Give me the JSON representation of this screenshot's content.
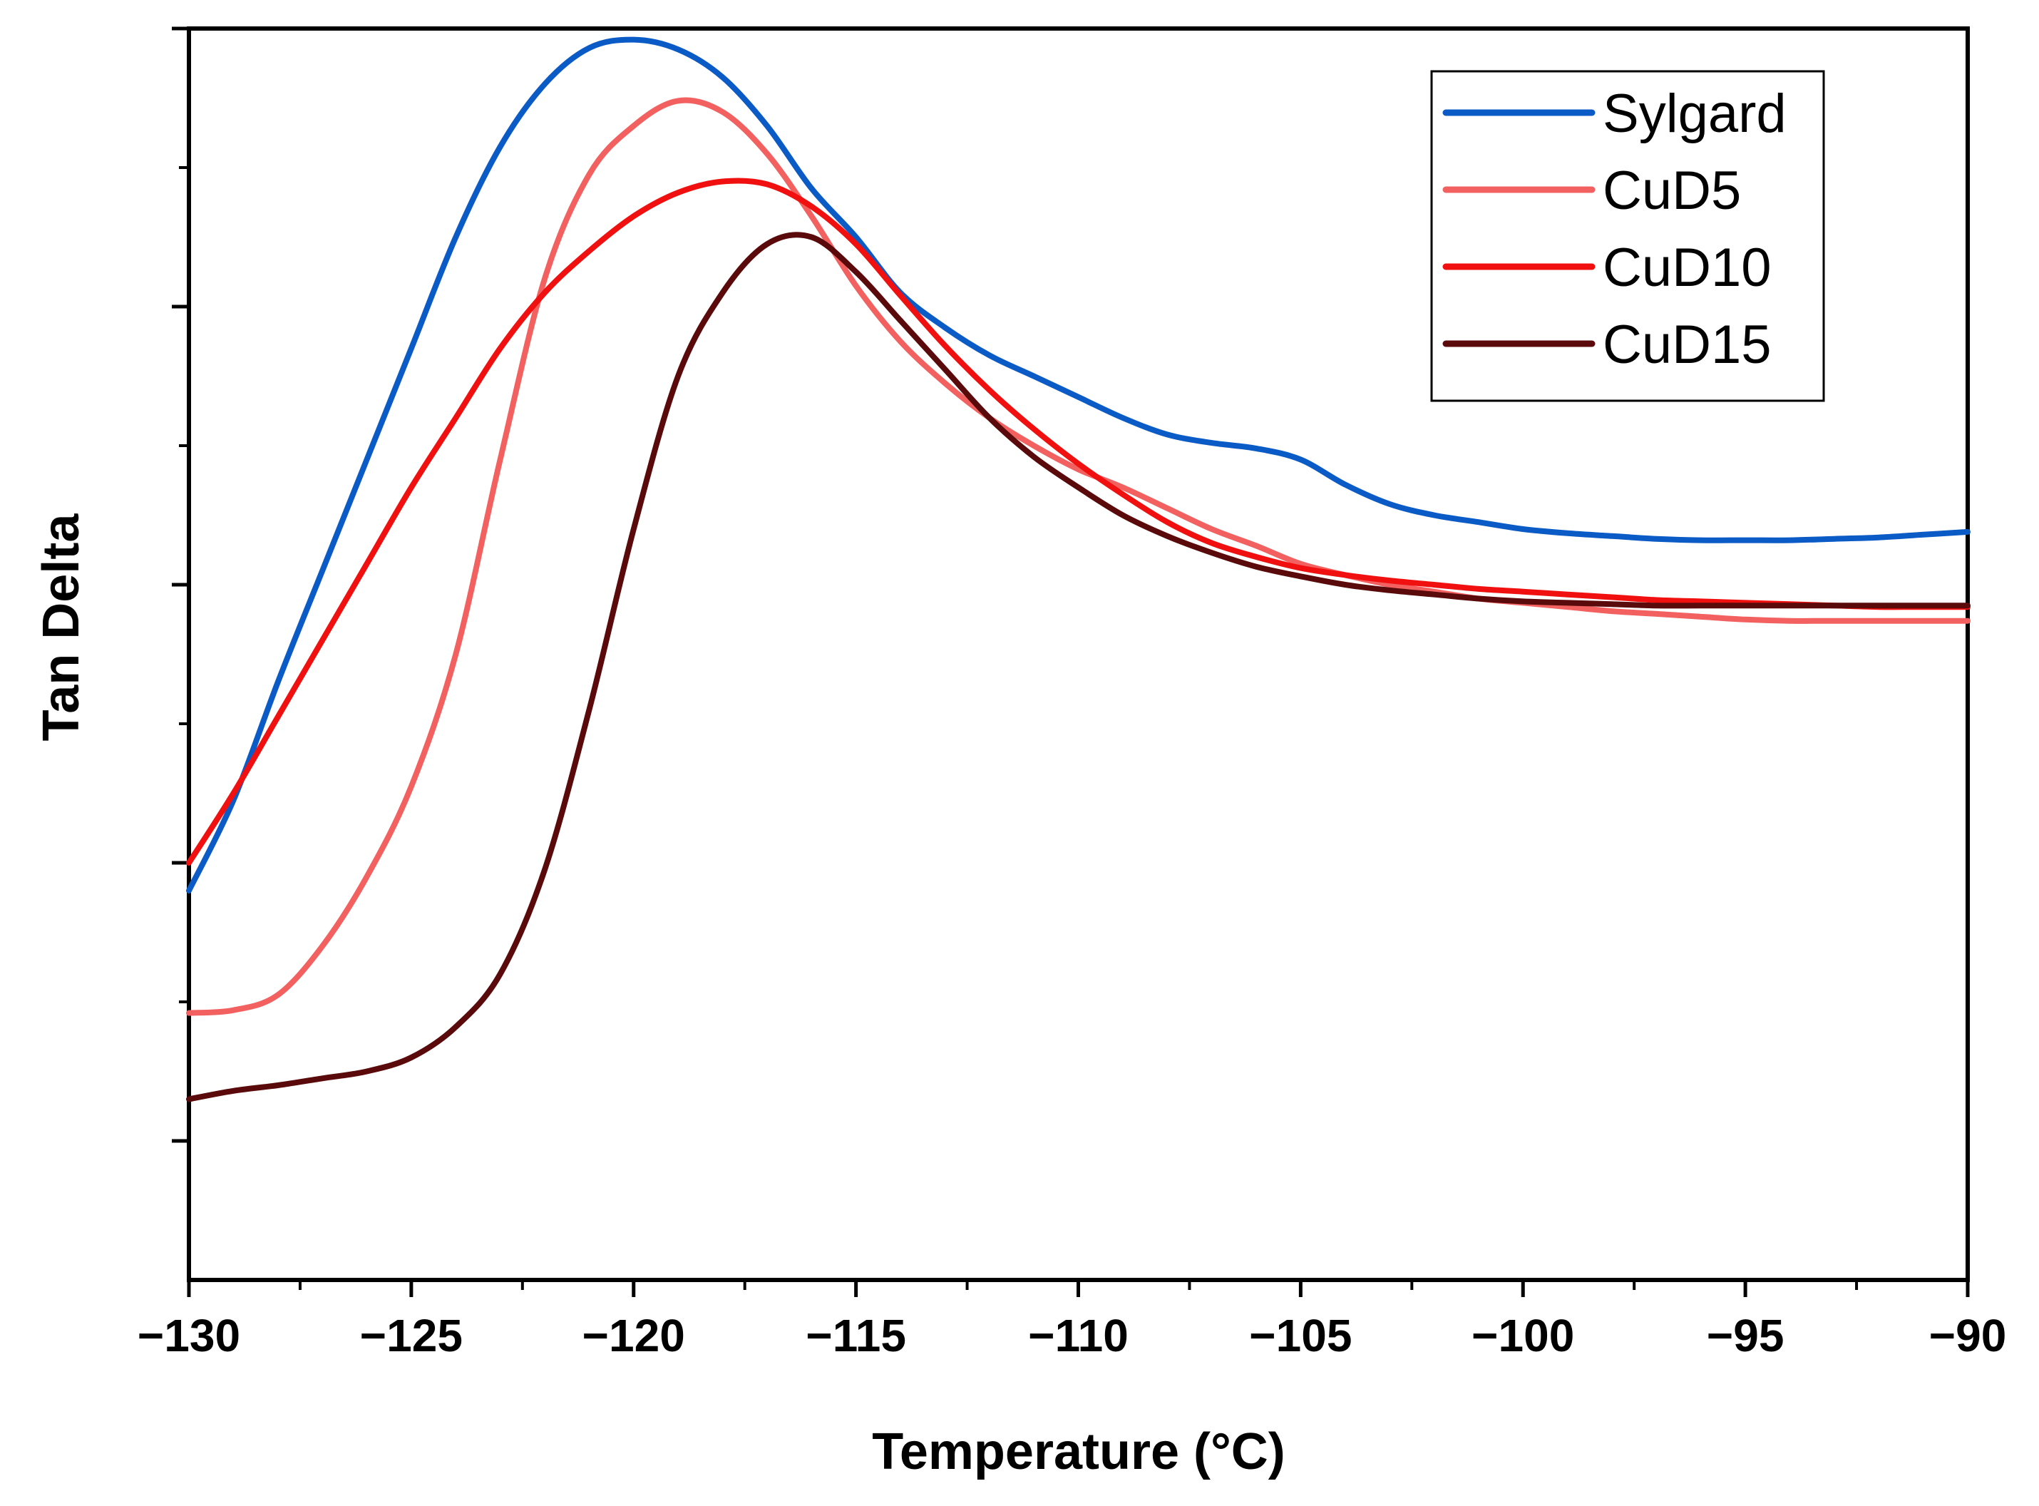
{
  "chart_data": {
    "type": "line",
    "title": "",
    "xlabel": "Temperature (°C)",
    "ylabel": "Tan Delta",
    "xlim": [
      -130,
      -90
    ],
    "ylim": [
      0,
      9
    ],
    "x_ticks": [
      -130,
      -125,
      -120,
      -115,
      -110,
      -105,
      -100,
      -95,
      -90
    ],
    "x_tick_labels": [
      "−130",
      "−125",
      "−120",
      "−115",
      "−110",
      "−105",
      "−100",
      "−95",
      "−90"
    ],
    "y_major_ticks": [
      1,
      3,
      5,
      7,
      9
    ],
    "y_minor_ticks": [
      2,
      4,
      6,
      8
    ],
    "y_tick_labels_shown": false,
    "legend_position": "top-right",
    "series": [
      {
        "name": "Sylgard",
        "color": "#0b5bc7",
        "x": [
          -130,
          -129,
          -128,
          -127,
          -126,
          -125,
          -124,
          -123,
          -122,
          -121,
          -120,
          -119,
          -118,
          -117,
          -116,
          -115,
          -114,
          -113,
          -112,
          -111,
          -110,
          -109,
          -108,
          -107,
          -106,
          -105,
          -104,
          -103,
          -102,
          -101,
          -100,
          -99,
          -98,
          -97,
          -96,
          -95,
          -94,
          -93,
          -92,
          -91,
          -90
        ],
        "y": [
          2.8,
          3.45,
          4.3,
          5.1,
          5.9,
          6.7,
          7.5,
          8.15,
          8.6,
          8.86,
          8.92,
          8.85,
          8.65,
          8.3,
          7.85,
          7.5,
          7.1,
          6.85,
          6.65,
          6.5,
          6.35,
          6.2,
          6.08,
          6.02,
          5.98,
          5.9,
          5.72,
          5.58,
          5.5,
          5.45,
          5.4,
          5.37,
          5.35,
          5.33,
          5.32,
          5.32,
          5.32,
          5.33,
          5.34,
          5.36,
          5.38
        ]
      },
      {
        "name": "CuD5",
        "color": "#f26060",
        "x": [
          -130,
          -129,
          -128,
          -127,
          -126,
          -125,
          -124,
          -123,
          -122,
          -121,
          -120,
          -119,
          -118,
          -117,
          -116,
          -115,
          -114,
          -113,
          -112,
          -111,
          -110,
          -109,
          -108,
          -107,
          -106,
          -105,
          -104,
          -103,
          -102,
          -101,
          -100,
          -99,
          -98,
          -97,
          -96,
          -95,
          -94,
          -93,
          -92,
          -91,
          -90
        ],
        "y": [
          1.92,
          1.94,
          2.05,
          2.4,
          2.9,
          3.55,
          4.5,
          5.9,
          7.2,
          7.95,
          8.3,
          8.48,
          8.4,
          8.1,
          7.65,
          7.15,
          6.75,
          6.45,
          6.2,
          6.0,
          5.83,
          5.7,
          5.55,
          5.4,
          5.28,
          5.15,
          5.07,
          5.0,
          4.95,
          4.9,
          4.87,
          4.84,
          4.81,
          4.79,
          4.77,
          4.75,
          4.74,
          4.74,
          4.74,
          4.74,
          4.74
        ]
      },
      {
        "name": "CuD10",
        "color": "#f01010",
        "x": [
          -130,
          -129,
          -128,
          -127,
          -126,
          -125,
          -124,
          -123,
          -122,
          -121,
          -120,
          -119,
          -118,
          -117,
          -116,
          -115,
          -114,
          -113,
          -112,
          -111,
          -110,
          -109,
          -108,
          -107,
          -106,
          -105,
          -104,
          -103,
          -102,
          -101,
          -100,
          -99,
          -98,
          -97,
          -96,
          -95,
          -94,
          -93,
          -92,
          -91,
          -90
        ],
        "y": [
          3.0,
          3.5,
          4.05,
          4.6,
          5.15,
          5.7,
          6.2,
          6.7,
          7.1,
          7.4,
          7.65,
          7.82,
          7.9,
          7.88,
          7.72,
          7.45,
          7.08,
          6.72,
          6.4,
          6.12,
          5.87,
          5.65,
          5.45,
          5.3,
          5.2,
          5.12,
          5.07,
          5.03,
          5.0,
          4.97,
          4.95,
          4.93,
          4.91,
          4.89,
          4.88,
          4.87,
          4.86,
          4.85,
          4.84,
          4.84,
          4.84
        ]
      },
      {
        "name": "CuD15",
        "color": "#5a0a0a",
        "x": [
          -130,
          -129,
          -128,
          -127,
          -126,
          -125,
          -124,
          -123,
          -122,
          -121,
          -120,
          -119,
          -118,
          -117,
          -116,
          -115,
          -114,
          -113,
          -112,
          -111,
          -110,
          -109,
          -108,
          -107,
          -106,
          -105,
          -104,
          -103,
          -102,
          -101,
          -100,
          -99,
          -98,
          -97,
          -96,
          -95,
          -94,
          -93,
          -92,
          -91,
          -90
        ],
        "y": [
          1.3,
          1.36,
          1.4,
          1.45,
          1.5,
          1.6,
          1.82,
          2.2,
          2.95,
          4.1,
          5.4,
          6.5,
          7.1,
          7.45,
          7.5,
          7.25,
          6.9,
          6.55,
          6.2,
          5.92,
          5.7,
          5.5,
          5.35,
          5.23,
          5.13,
          5.06,
          5.0,
          4.96,
          4.93,
          4.9,
          4.88,
          4.87,
          4.86,
          4.85,
          4.85,
          4.85,
          4.85,
          4.85,
          4.85,
          4.85,
          4.85
        ]
      }
    ]
  }
}
